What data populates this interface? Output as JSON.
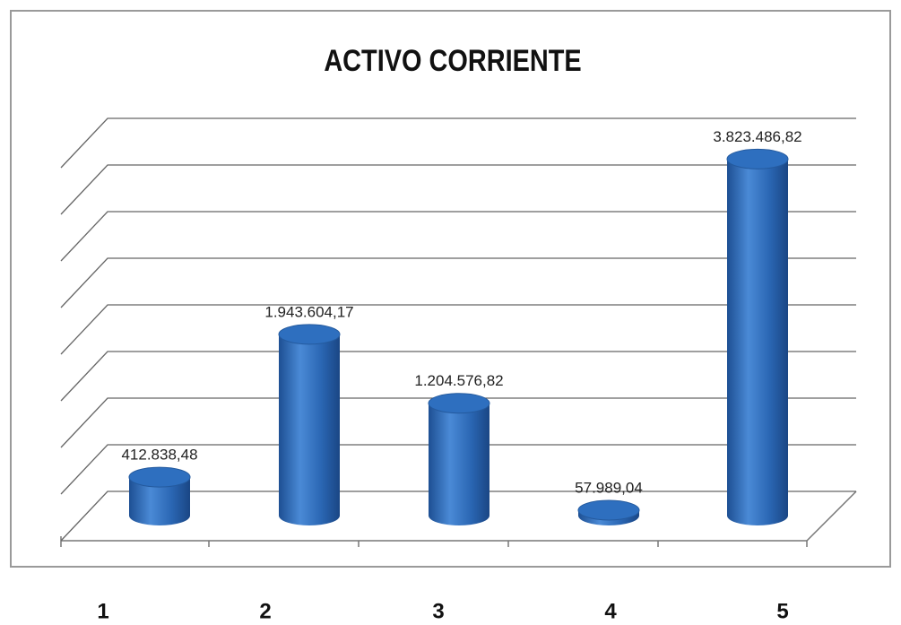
{
  "chart_data": {
    "type": "bar",
    "title": "ACTIVO CORRIENTE",
    "categories": [
      "1",
      "2",
      "3",
      "4",
      "5"
    ],
    "values": [
      412838.48,
      1943604.17,
      1204576.82,
      57989.04,
      3823486.82
    ],
    "value_labels": [
      "412.838,48",
      "1.943.604,17",
      "1.204.576,82",
      "57.989,04",
      "3.823.486,82"
    ],
    "color": "#2e6fbf",
    "ylim": [
      0,
      4000000
    ],
    "yticks": [
      0,
      500000,
      1000000,
      1500000,
      2000000,
      2500000,
      3000000,
      3500000,
      4000000
    ],
    "grid": true
  }
}
